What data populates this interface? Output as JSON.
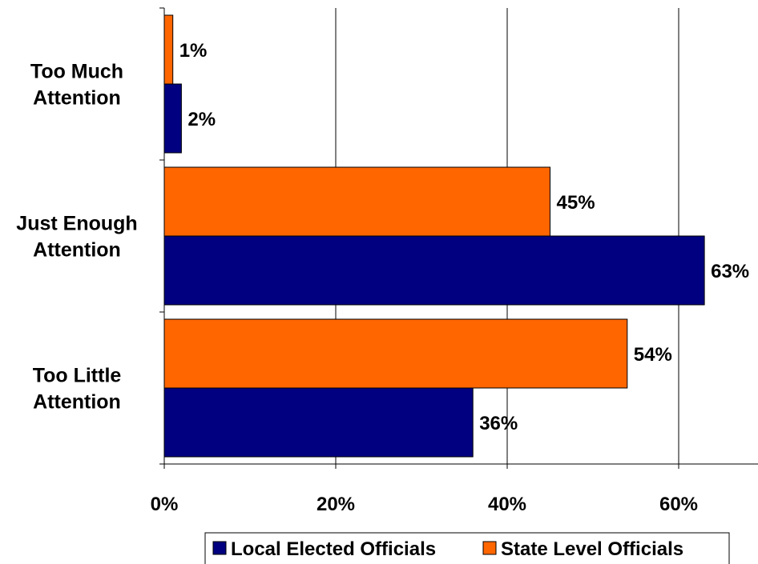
{
  "chart_data": {
    "type": "bar",
    "orientation": "horizontal",
    "categories": [
      [
        "Too Much",
        "Attention"
      ],
      [
        "Just Enough",
        "Attention"
      ],
      [
        "Too Little",
        "Attention"
      ]
    ],
    "series": [
      {
        "name": "Local Elected Officials",
        "color": "#000080",
        "values": [
          2,
          63,
          36
        ],
        "labels": [
          "2%",
          "63%",
          "36%"
        ]
      },
      {
        "name": "State Level Officials",
        "color": "#ff6600",
        "values": [
          1,
          45,
          54
        ],
        "labels": [
          "1%",
          "45%",
          "54%"
        ]
      }
    ],
    "xlim": [
      0,
      70
    ],
    "xticks": [
      0,
      20,
      40,
      60
    ],
    "xtick_labels": [
      "0%",
      "20%",
      "40%",
      "60%"
    ],
    "grid": "vertical",
    "legend_placement": "bottom",
    "title": "",
    "xlabel": "",
    "ylabel": ""
  }
}
